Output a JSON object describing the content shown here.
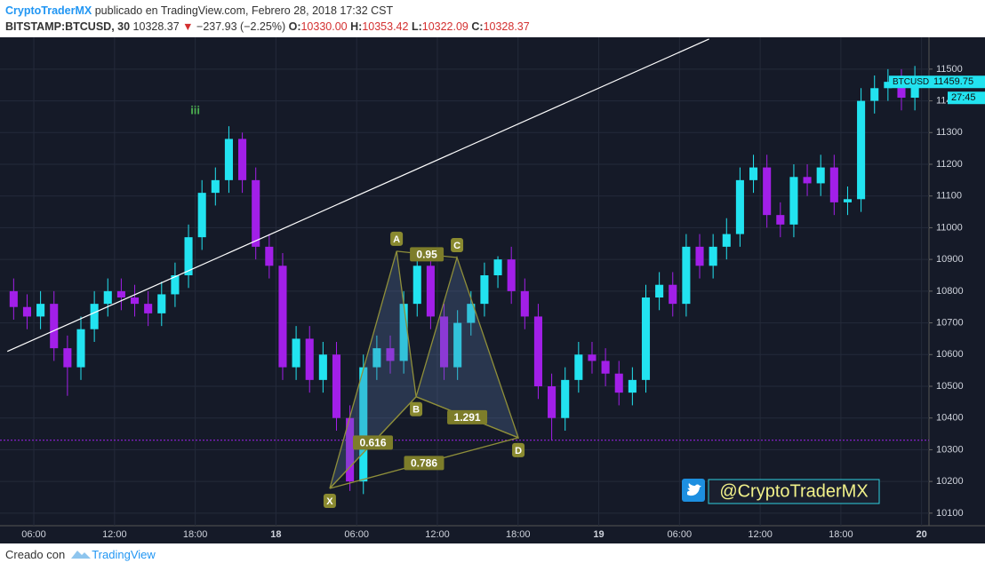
{
  "header": {
    "author": "CryptoTraderMX",
    "published": " publicado en TradingView.com, Febrero 28, 2018 17:32 CST",
    "symbol": "BITSTAMP:BTCUSD, 30",
    "last": "10328.37",
    "arrow": "▼",
    "change": "−237.93 (−2.25%)",
    "o_label": "O:",
    "o": "10330.00",
    "h_label": "H:",
    "h": "10353.42",
    "l_label": "L:",
    "l": "10322.09",
    "c_label": "C:",
    "c": "10328.37"
  },
  "footer": {
    "made_with": "Creado con",
    "brand": "TradingView"
  },
  "chart_data": {
    "type": "candlestick",
    "up_color": "#22e3f0",
    "down_color": "#a21fe8",
    "xlim": [
      3.75,
      72.55
    ],
    "ylim": [
      10066,
      11592
    ],
    "xticks": [
      {
        "value": 6,
        "label": "06:00"
      },
      {
        "value": 12,
        "label": "12:00"
      },
      {
        "value": 18,
        "label": "18:00"
      },
      {
        "value": 24,
        "label": "18"
      },
      {
        "value": 30,
        "label": "06:00"
      },
      {
        "value": 36,
        "label": "12:00"
      },
      {
        "value": 42,
        "label": "18:00"
      },
      {
        "value": 48,
        "label": "19"
      },
      {
        "value": 54,
        "label": "06:00"
      },
      {
        "value": 60,
        "label": "12:00"
      },
      {
        "value": 66,
        "label": "18:00"
      },
      {
        "value": 72,
        "label": "20"
      }
    ],
    "yticks": [
      10100,
      10200,
      10300,
      10400,
      10500,
      10600,
      10700,
      10800,
      10900,
      11000,
      11100,
      11200,
      11300,
      11400,
      11500
    ],
    "x": [
      4.5,
      5.5,
      6.5,
      7.5,
      8.5,
      9.5,
      10.5,
      11.5,
      12.5,
      13.5,
      14.5,
      15.5,
      16.5,
      17.5,
      18.5,
      19.5,
      20.5,
      21.5,
      22.5,
      23.5,
      24.5,
      25.5,
      26.5,
      27.5,
      28.5,
      29.5,
      30.5,
      31.5,
      32.5,
      33.5,
      34.5,
      35.5,
      36.5,
      37.5,
      38.5,
      39.5,
      40.5,
      41.5,
      42.5,
      43.5,
      44.5,
      45.5,
      46.5,
      47.5,
      48.5,
      49.5,
      50.5,
      51.5,
      52.5,
      53.5,
      54.5,
      55.5,
      56.5,
      57.5,
      58.5,
      59.5,
      60.5,
      61.5,
      62.5,
      63.5,
      64.5,
      65.5,
      66.5,
      67.5,
      68.5,
      69.5,
      70.5,
      71.5
    ],
    "open": [
      10800,
      10750,
      10720,
      10760,
      10620,
      10560,
      10680,
      10760,
      10800,
      10780,
      10760,
      10730,
      10790,
      10850,
      10970,
      11110,
      11150,
      11280,
      11150,
      10940,
      10880,
      10560,
      10650,
      10520,
      10600,
      10400,
      10200,
      10560,
      10620,
      10580,
      10760,
      10880,
      10720,
      10560,
      10700,
      10760,
      10850,
      10900,
      10800,
      10720,
      10500,
      10400,
      10520,
      10600,
      10580,
      10540,
      10480,
      10520,
      10780,
      10820,
      10760,
      10940,
      10880,
      10940,
      10980,
      11150,
      11190,
      11040,
      11010,
      11160,
      11140,
      11190,
      11080,
      11090,
      11400,
      11440,
      11460,
      11410
    ],
    "high": [
      10840,
      10790,
      10800,
      10800,
      10660,
      10720,
      10800,
      10840,
      10840,
      10820,
      10800,
      10830,
      10890,
      11010,
      11150,
      11190,
      11320,
      11300,
      11190,
      10980,
      10920,
      10690,
      10690,
      10640,
      10640,
      10440,
      10600,
      10660,
      10660,
      10800,
      10920,
      10920,
      10760,
      10740,
      10800,
      10890,
      10910,
      10940,
      10840,
      10760,
      10540,
      10560,
      10640,
      10640,
      10620,
      10580,
      10560,
      10820,
      10860,
      10860,
      10980,
      10980,
      10980,
      11030,
      11190,
      11230,
      11230,
      11080,
      11200,
      11200,
      11230,
      11230,
      11130,
      11440,
      11480,
      11500,
      11500,
      11510
    ],
    "low": [
      10710,
      10680,
      10680,
      10580,
      10470,
      10520,
      10640,
      10720,
      10740,
      10720,
      10690,
      10690,
      10750,
      10810,
      10930,
      11070,
      11110,
      11110,
      10900,
      10840,
      10520,
      10520,
      10480,
      10480,
      10360,
      10170,
      10160,
      10520,
      10540,
      10540,
      10720,
      10680,
      10520,
      10520,
      10660,
      10720,
      10810,
      10760,
      10680,
      10460,
      10330,
      10360,
      10480,
      10540,
      10500,
      10440,
      10440,
      10480,
      10740,
      10720,
      10720,
      10840,
      10840,
      10900,
      10940,
      11110,
      11000,
      10970,
      10970,
      11100,
      11100,
      11040,
      11040,
      11050,
      11360,
      11400,
      11370,
      11370
    ],
    "close": [
      10750,
      10720,
      10760,
      10620,
      10560,
      10680,
      10760,
      10800,
      10780,
      10760,
      10730,
      10790,
      10850,
      10970,
      11110,
      11150,
      11280,
      11150,
      10940,
      10880,
      10560,
      10650,
      10520,
      10600,
      10400,
      10200,
      10560,
      10620,
      10580,
      10760,
      10880,
      10720,
      10560,
      10700,
      10760,
      10850,
      10900,
      10800,
      10720,
      10500,
      10400,
      10520,
      10600,
      10580,
      10540,
      10480,
      10520,
      10780,
      10820,
      10760,
      10940,
      10880,
      10940,
      10980,
      11150,
      11190,
      11040,
      11010,
      11160,
      11140,
      11190,
      11080,
      11090,
      11400,
      11440,
      11460,
      11410,
      11460
    ],
    "trendline": {
      "x": [
        4.03,
        56.2
      ],
      "y": [
        10610,
        11595
      ]
    },
    "price_line": 10330,
    "wave_label": {
      "text": "iii",
      "x": 18,
      "y": 11368
    },
    "pattern": {
      "points": [
        {
          "label": "X",
          "x": 28,
          "y": 10178
        },
        {
          "label": "A",
          "x": 32.97,
          "y": 10926
        },
        {
          "label": "B",
          "x": 34.42,
          "y": 10467
        },
        {
          "label": "C",
          "x": 37.46,
          "y": 10906
        },
        {
          "label": "D",
          "x": 42.02,
          "y": 10338
        }
      ],
      "ratios": [
        "0.616",
        "0.95",
        "1.291",
        "0.786"
      ]
    },
    "symbol_tag": "BTCUSD",
    "last_price": {
      "value": 11459.75,
      "label": "11459.75"
    },
    "countdown": "27:45",
    "watermark": "@CryptoTraderMX"
  }
}
